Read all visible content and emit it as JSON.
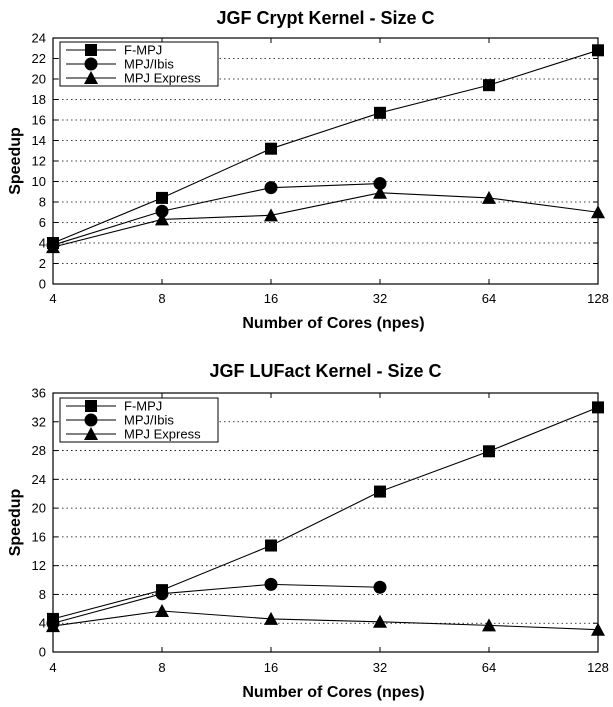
{
  "chart_data": [
    {
      "type": "line",
      "title": "JGF Crypt Kernel - Size C",
      "xlabel": "Number of Cores (npes)",
      "ylabel": "Speedup",
      "x": [
        4,
        8,
        16,
        32,
        64,
        128
      ],
      "x_tick_labels": [
        "4",
        "8",
        "16",
        "32",
        "64",
        "128"
      ],
      "x_scale": "log2",
      "ylim": [
        0,
        24
      ],
      "y_ticks": [
        0,
        2,
        4,
        6,
        8,
        10,
        12,
        14,
        16,
        18,
        20,
        22,
        24
      ],
      "grid": "horizontal dotted",
      "legend_position": "top-left",
      "series": [
        {
          "name": "F-MPJ",
          "marker": "square",
          "values": [
            4.0,
            8.4,
            13.2,
            16.7,
            19.4,
            22.8
          ]
        },
        {
          "name": "MPJ/Ibis",
          "marker": "circle",
          "values": [
            3.8,
            7.1,
            9.4,
            9.8,
            null,
            null
          ]
        },
        {
          "name": "MPJ Express",
          "marker": "triangle",
          "values": [
            3.6,
            6.3,
            6.7,
            8.9,
            8.4,
            7.0
          ]
        }
      ]
    },
    {
      "type": "line",
      "title": "JGF LUFact Kernel - Size C",
      "xlabel": "Number of Cores (npes)",
      "ylabel": "Speedup",
      "x": [
        4,
        8,
        16,
        32,
        64,
        128
      ],
      "x_tick_labels": [
        "4",
        "8",
        "16",
        "32",
        "64",
        "128"
      ],
      "x_scale": "log2",
      "ylim": [
        0,
        36
      ],
      "y_ticks": [
        0,
        4,
        8,
        12,
        16,
        20,
        24,
        28,
        32,
        36
      ],
      "grid": "horizontal dotted",
      "legend_position": "top-left",
      "series": [
        {
          "name": "F-MPJ",
          "marker": "square",
          "values": [
            4.6,
            8.6,
            14.8,
            22.3,
            27.9,
            34.0
          ]
        },
        {
          "name": "MPJ/Ibis",
          "marker": "circle",
          "values": [
            4.0,
            8.1,
            9.4,
            9.0,
            null,
            null
          ]
        },
        {
          "name": "MPJ Express",
          "marker": "triangle",
          "values": [
            3.6,
            5.7,
            4.6,
            4.2,
            3.7,
            3.1
          ]
        }
      ]
    }
  ]
}
